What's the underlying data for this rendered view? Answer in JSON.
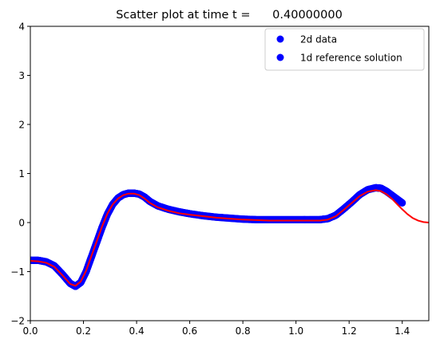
{
  "chart_data": {
    "type": "scatter",
    "title": "Scatter plot at time t =      0.40000000",
    "xlabel": "",
    "ylabel": "",
    "xlim": [
      0,
      1.5
    ],
    "ylim": [
      -2,
      4
    ],
    "x_ticks": [
      "0.0",
      "0.2",
      "0.4",
      "0.6",
      "0.8",
      "1.0",
      "1.2",
      "1.4"
    ],
    "y_ticks": [
      "−2",
      "−1",
      "0",
      "1",
      "2",
      "3",
      "4"
    ],
    "grid": false,
    "legend": {
      "position": "top-right",
      "entries": [
        "2d data",
        "1d reference solution"
      ]
    },
    "colors": {
      "scatter": "#0000ff",
      "reference": "#ff0000"
    },
    "series": [
      {
        "name": "2d data",
        "kind": "scatter",
        "x": [
          0.0,
          0.03,
          0.06,
          0.09,
          0.12,
          0.15,
          0.17,
          0.19,
          0.21,
          0.23,
          0.25,
          0.27,
          0.29,
          0.31,
          0.33,
          0.35,
          0.37,
          0.39,
          0.41,
          0.43,
          0.45,
          0.48,
          0.52,
          0.56,
          0.6,
          0.65,
          0.7,
          0.75,
          0.8,
          0.85,
          0.9,
          0.95,
          1.0,
          1.05,
          1.09,
          1.12,
          1.15,
          1.18,
          1.21,
          1.24,
          1.27,
          1.3,
          1.32,
          1.34,
          1.36,
          1.38,
          1.4
        ],
        "y": [
          -0.77,
          -0.77,
          -0.8,
          -0.88,
          -1.05,
          -1.24,
          -1.3,
          -1.22,
          -1.0,
          -0.7,
          -0.4,
          -0.1,
          0.17,
          0.37,
          0.5,
          0.57,
          0.6,
          0.6,
          0.58,
          0.52,
          0.43,
          0.34,
          0.27,
          0.22,
          0.18,
          0.14,
          0.11,
          0.09,
          0.07,
          0.06,
          0.06,
          0.06,
          0.06,
          0.06,
          0.06,
          0.08,
          0.15,
          0.28,
          0.42,
          0.57,
          0.67,
          0.71,
          0.7,
          0.64,
          0.56,
          0.48,
          0.4
        ]
      },
      {
        "name": "1d reference solution",
        "kind": "line",
        "x": [
          0.0,
          0.03,
          0.06,
          0.09,
          0.12,
          0.15,
          0.17,
          0.19,
          0.21,
          0.23,
          0.25,
          0.27,
          0.29,
          0.31,
          0.33,
          0.35,
          0.37,
          0.39,
          0.41,
          0.43,
          0.45,
          0.48,
          0.52,
          0.56,
          0.6,
          0.65,
          0.7,
          0.75,
          0.8,
          0.85,
          0.9,
          0.95,
          1.0,
          1.05,
          1.09,
          1.12,
          1.15,
          1.18,
          1.21,
          1.24,
          1.27,
          1.3,
          1.32,
          1.34,
          1.36,
          1.38,
          1.4,
          1.42,
          1.44,
          1.46,
          1.48,
          1.5
        ],
        "y": [
          -0.78,
          -0.79,
          -0.82,
          -0.9,
          -1.07,
          -1.25,
          -1.29,
          -1.2,
          -0.98,
          -0.68,
          -0.38,
          -0.08,
          0.18,
          0.37,
          0.49,
          0.56,
          0.59,
          0.59,
          0.56,
          0.49,
          0.4,
          0.31,
          0.24,
          0.19,
          0.16,
          0.13,
          0.1,
          0.08,
          0.06,
          0.05,
          0.04,
          0.04,
          0.04,
          0.04,
          0.04,
          0.06,
          0.13,
          0.26,
          0.4,
          0.54,
          0.63,
          0.66,
          0.64,
          0.58,
          0.49,
          0.38,
          0.27,
          0.17,
          0.09,
          0.04,
          0.01,
          0.0
        ]
      }
    ]
  }
}
